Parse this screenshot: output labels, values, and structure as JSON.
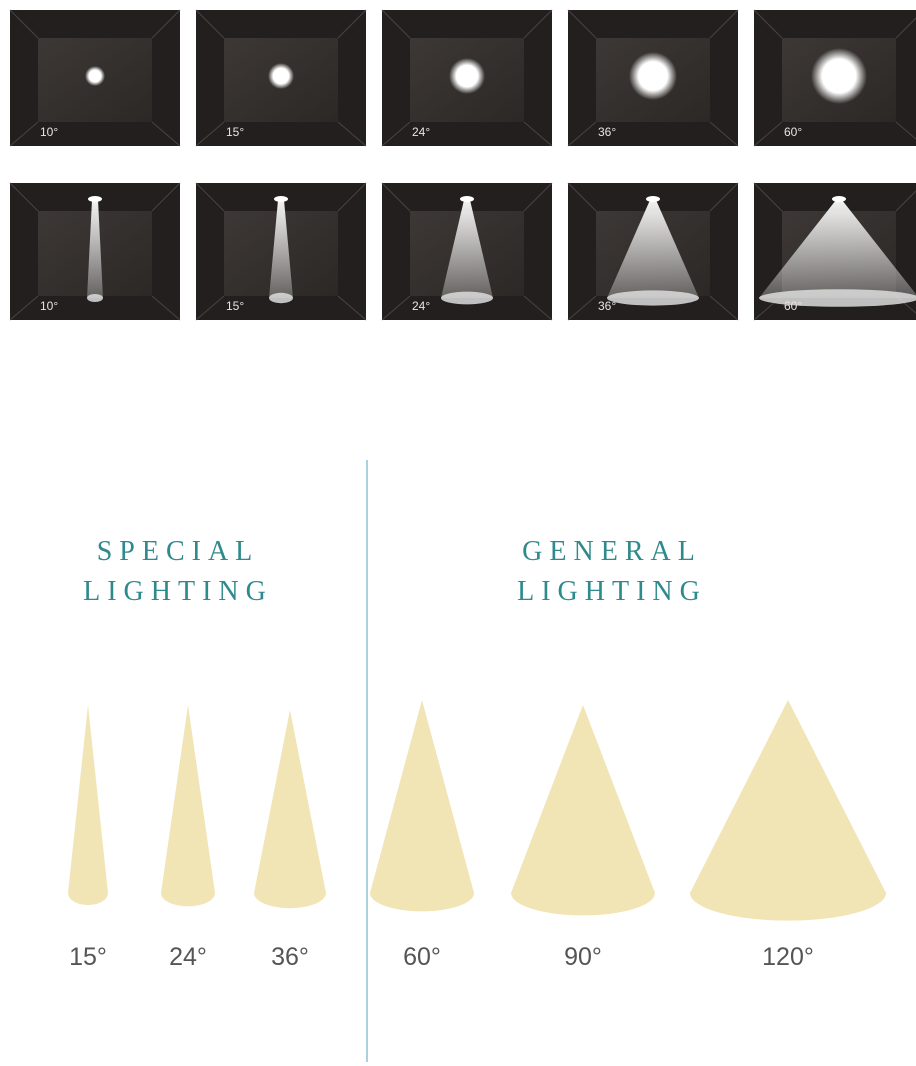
{
  "spot_row": {
    "labels": [
      "10°",
      "15°",
      "24°",
      "36°",
      "60°"
    ]
  },
  "beam_row": {
    "labels": [
      "10°",
      "15°",
      "24°",
      "36°",
      "60°"
    ]
  },
  "sections": [
    {
      "title_line1": "SPECIAL",
      "title_line2": "LIGHTING"
    },
    {
      "title_line1": "GENERAL",
      "title_line2": "LIGHTING"
    }
  ],
  "cones": {
    "labels": [
      "15°",
      "24°",
      "36°",
      "60°",
      "90°",
      "120°"
    ]
  }
}
